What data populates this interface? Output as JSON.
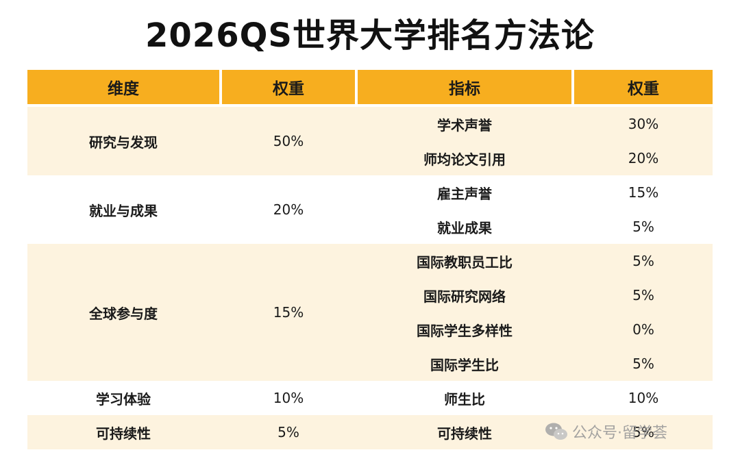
{
  "title": "2026QS世界大学排名方法论",
  "header": {
    "dimension": "维度",
    "weight": "权重",
    "indicator": "指标",
    "indicator_weight": "权重"
  },
  "groups": [
    {
      "dimension": "研究与发现",
      "weight": "50%",
      "indicators": [
        {
          "name": "学术声誉",
          "weight": "30%"
        },
        {
          "name": "师均论文引用",
          "weight": "20%"
        }
      ]
    },
    {
      "dimension": "就业与成果",
      "weight": "20%",
      "indicators": [
        {
          "name": "雇主声誉",
          "weight": "15%"
        },
        {
          "name": "就业成果",
          "weight": "5%"
        }
      ]
    },
    {
      "dimension": "全球参与度",
      "weight": "15%",
      "indicators": [
        {
          "name": "国际教职员工比",
          "weight": "5%"
        },
        {
          "name": "国际研究网络",
          "weight": "5%"
        },
        {
          "name": "国际学生多样性",
          "weight": "0%"
        },
        {
          "name": "国际学生比",
          "weight": "5%"
        }
      ]
    },
    {
      "dimension": "学习体验",
      "weight": "10%",
      "indicators": [
        {
          "name": "师生比",
          "weight": "10%"
        }
      ]
    },
    {
      "dimension": "可持续性",
      "weight": "5%",
      "indicators": [
        {
          "name": "可持续性",
          "weight": "5%"
        }
      ]
    }
  ],
  "watermark": {
    "text": "公众号·留学荟",
    "icon": "wechat-icon"
  },
  "colors": {
    "header_bg": "#f7ae1f",
    "shade_bg": "#fdf3df"
  }
}
